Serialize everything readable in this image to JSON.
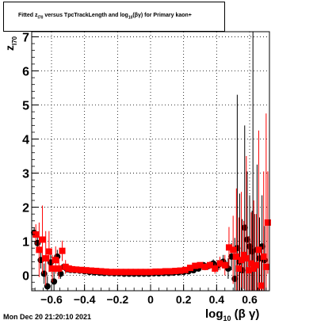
{
  "chart_data": {
    "type": "scatter",
    "title": "Fitted z_I70 versus TpcTrackLength and log10(βγ) for Primary kaon+",
    "title_parts": {
      "a": "Fitted  z",
      "a_sub": "I70",
      "b": " versus TpcTrackLength and log",
      "b_sub": "10",
      "c": "(βγ) for Primary kaon+"
    },
    "xlabel": {
      "main": "log",
      "sub": "10",
      "rest": " (β γ)"
    },
    "ylabel": {
      "main": "z",
      "sub": "I70"
    },
    "xlim": [
      -0.72,
      0.72
    ],
    "ylim": [
      -0.45,
      7.15
    ],
    "x_ticks": [
      -0.6,
      -0.4,
      -0.2,
      0,
      0.2,
      0.4,
      0.6
    ],
    "x_tick_labels": [
      "−0.6",
      "−0.4",
      "−0.2",
      "0",
      "0.2",
      "0.4",
      "0.6"
    ],
    "y_ticks": [
      0,
      1,
      2,
      3,
      4,
      5,
      6,
      7
    ],
    "y_tick_labels": [
      "0",
      "1",
      "2",
      "3",
      "4",
      "5",
      "6",
      "7"
    ],
    "grid": true,
    "vertical_line_x": 0.62,
    "colors": {
      "series1": "#000000",
      "series2": "#ff0000",
      "frame": "#000000",
      "grid": "#000000"
    },
    "series": [
      {
        "marker": "circle",
        "color": "#000000",
        "points": [
          [
            -0.705,
            1.25,
            0.15
          ],
          [
            -0.685,
            0.95,
            0.2
          ],
          [
            -0.665,
            0.45,
            0.25
          ],
          [
            -0.645,
            0.05,
            0.3
          ],
          [
            -0.625,
            -0.32,
            0.3
          ],
          [
            -0.605,
            0.38,
            0.25
          ],
          [
            -0.585,
            -0.18,
            0.3
          ],
          [
            -0.565,
            0.55,
            0.2
          ],
          [
            -0.545,
            0.05,
            0.15
          ],
          [
            -0.525,
            0.25,
            0.1
          ],
          [
            -0.505,
            0.18,
            0.05
          ],
          [
            -0.485,
            0.16,
            0.04
          ],
          [
            -0.46,
            0.15,
            0.03
          ],
          [
            -0.43,
            0.14,
            0.03
          ],
          [
            -0.4,
            0.12,
            0.02
          ],
          [
            -0.37,
            0.1,
            0.02
          ],
          [
            -0.34,
            0.09,
            0.02
          ],
          [
            -0.31,
            0.08,
            0.02
          ],
          [
            -0.28,
            0.07,
            0.02
          ],
          [
            -0.25,
            0.07,
            0.02
          ],
          [
            -0.22,
            0.06,
            0.02
          ],
          [
            -0.19,
            0.06,
            0.02
          ],
          [
            -0.16,
            0.05,
            0.02
          ],
          [
            -0.13,
            0.05,
            0.02
          ],
          [
            -0.1,
            0.05,
            0.02
          ],
          [
            -0.07,
            0.05,
            0.02
          ],
          [
            -0.04,
            0.05,
            0.02
          ],
          [
            -0.01,
            0.05,
            0.02
          ],
          [
            0.02,
            0.06,
            0.02
          ],
          [
            0.05,
            0.06,
            0.02
          ],
          [
            0.08,
            0.07,
            0.02
          ],
          [
            0.11,
            0.07,
            0.02
          ],
          [
            0.14,
            0.08,
            0.02
          ],
          [
            0.17,
            0.09,
            0.02
          ],
          [
            0.2,
            0.1,
            0.03
          ],
          [
            0.23,
            0.12,
            0.03
          ],
          [
            0.26,
            0.15,
            0.04
          ],
          [
            0.29,
            0.2,
            0.05
          ],
          [
            0.32,
            0.3,
            0.08
          ],
          [
            0.35,
            0.28,
            0.1
          ],
          [
            0.38,
            0.35,
            0.12
          ],
          [
            0.41,
            0.3,
            0.15
          ],
          [
            0.44,
            0.4,
            0.2
          ],
          [
            0.47,
            0.2,
            0.3
          ],
          [
            0.49,
            0.55,
            0.4
          ],
          [
            0.51,
            -0.1,
            1.2
          ],
          [
            0.525,
            0.8,
            4.5
          ],
          [
            0.54,
            0.4,
            2.0
          ],
          [
            0.555,
            0.15,
            1.5
          ],
          [
            0.57,
            1.4,
            3.0
          ],
          [
            0.585,
            1.05,
            2.0
          ],
          [
            0.6,
            0.85,
            1.5
          ],
          [
            0.615,
            0.7,
            1.2
          ],
          [
            0.63,
            0.3,
            1.5
          ],
          [
            0.645,
            0.75,
            2.5
          ],
          [
            0.66,
            0.5,
            1.2
          ],
          [
            0.675,
            0.85,
            1.5
          ],
          [
            0.69,
            0.45,
            1.0
          ]
        ]
      },
      {
        "marker": "square",
        "color": "#ff0000",
        "points": [
          [
            -0.695,
            1.2,
            0.3
          ],
          [
            -0.675,
            0.75,
            0.8
          ],
          [
            -0.655,
            1.05,
            1.0
          ],
          [
            -0.635,
            0.5,
            0.8
          ],
          [
            -0.615,
            0.7,
            0.6
          ],
          [
            -0.595,
            0.2,
            0.4
          ],
          [
            -0.575,
            0.45,
            0.4
          ],
          [
            -0.555,
            0.2,
            0.3
          ],
          [
            -0.535,
            0.72,
            0.3
          ],
          [
            -0.515,
            0.25,
            0.2
          ],
          [
            -0.495,
            0.2,
            0.1
          ],
          [
            -0.475,
            0.18,
            0.08
          ],
          [
            -0.45,
            0.17,
            0.06
          ],
          [
            -0.42,
            0.16,
            0.05
          ],
          [
            -0.39,
            0.15,
            0.04
          ],
          [
            -0.36,
            0.14,
            0.04
          ],
          [
            -0.33,
            0.13,
            0.03
          ],
          [
            -0.3,
            0.12,
            0.03
          ],
          [
            -0.27,
            0.11,
            0.03
          ],
          [
            -0.24,
            0.1,
            0.03
          ],
          [
            -0.21,
            0.1,
            0.03
          ],
          [
            -0.18,
            0.1,
            0.03
          ],
          [
            -0.15,
            0.1,
            0.03
          ],
          [
            -0.12,
            0.1,
            0.03
          ],
          [
            -0.09,
            0.1,
            0.03
          ],
          [
            -0.06,
            0.1,
            0.03
          ],
          [
            -0.03,
            0.1,
            0.03
          ],
          [
            0.0,
            0.1,
            0.03
          ],
          [
            0.03,
            0.11,
            0.03
          ],
          [
            0.06,
            0.11,
            0.03
          ],
          [
            0.09,
            0.12,
            0.03
          ],
          [
            0.12,
            0.12,
            0.03
          ],
          [
            0.15,
            0.13,
            0.03
          ],
          [
            0.18,
            0.14,
            0.04
          ],
          [
            0.21,
            0.16,
            0.05
          ],
          [
            0.24,
            0.22,
            0.06
          ],
          [
            0.27,
            0.28,
            0.07
          ],
          [
            0.3,
            0.3,
            0.08
          ],
          [
            0.33,
            0.25,
            0.1
          ],
          [
            0.36,
            0.3,
            0.12
          ],
          [
            0.39,
            0.2,
            0.15
          ],
          [
            0.42,
            0.35,
            0.2
          ],
          [
            0.45,
            0.3,
            0.3
          ],
          [
            0.475,
            0.82,
            0.6
          ],
          [
            0.5,
            0.75,
            1.0
          ],
          [
            0.52,
            0.55,
            2.0
          ],
          [
            0.535,
            0.2,
            1.5
          ],
          [
            0.55,
            0.45,
            2.0
          ],
          [
            0.565,
            0.6,
            1.0
          ],
          [
            0.58,
            0.5,
            3.0
          ],
          [
            0.595,
            0.15,
            1.0
          ],
          [
            0.61,
            0.35,
            1.5
          ],
          [
            0.625,
            0.2,
            2.0
          ],
          [
            0.64,
            0.3,
            1.5
          ],
          [
            0.655,
            0.75,
            3.5
          ],
          [
            0.67,
            -0.3,
            1.0
          ],
          [
            0.685,
            0.55,
            2.5
          ],
          [
            0.7,
            0.25,
            4.5
          ],
          [
            0.71,
            1.55,
            1.5
          ]
        ]
      }
    ]
  },
  "footer": {
    "date": "Mon Dec 20 21:20:10 2021"
  }
}
